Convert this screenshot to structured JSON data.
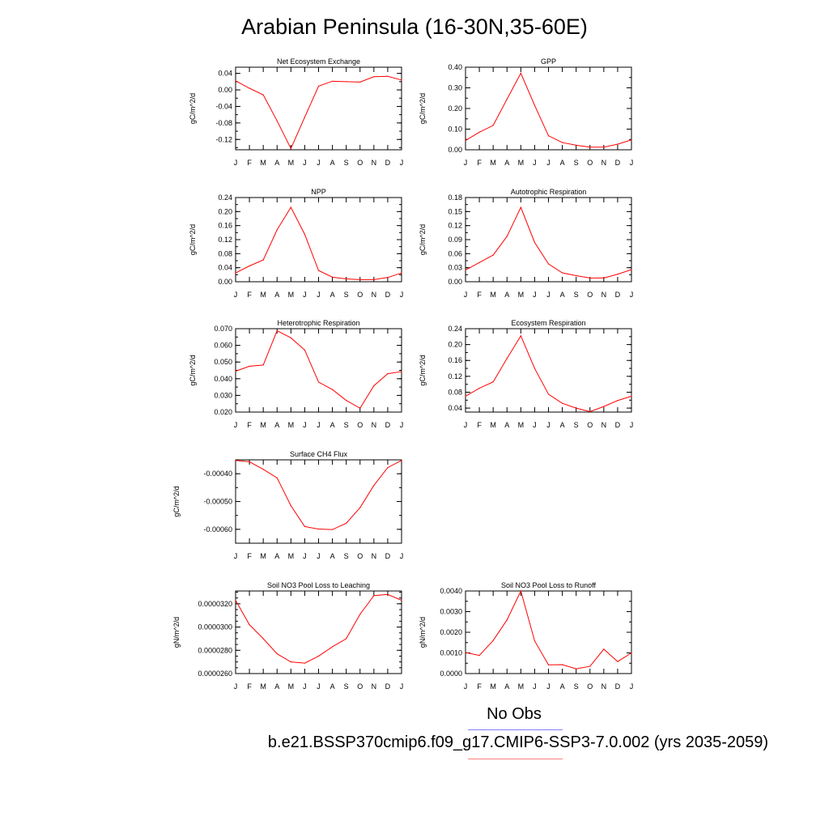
{
  "title": "Arabian Peninsula (16-30N,35-60E)",
  "legend": {
    "obs_label": "No Obs",
    "run_label": "b.e21.BSSP370cmip6.f09_g17.CMIP6-SSP3-7.0.002 (yrs 2035-2059)",
    "obs_color": "#7f7fff",
    "run_color": "#ff7f7f",
    "line_color": "#ff0000"
  },
  "chart_data": [
    {
      "type": "line",
      "title": "Net Ecosystem Exchange",
      "ylabel": "gC/m^2/d",
      "categories": [
        "J",
        "F",
        "M",
        "A",
        "M",
        "J",
        "J",
        "A",
        "S",
        "O",
        "N",
        "D",
        "J"
      ],
      "ylim": [
        -0.145,
        0.055
      ],
      "yticks": [
        0.04,
        0.0,
        -0.04,
        -0.08,
        -0.12
      ],
      "ytick_labels": [
        "0.04",
        "0.00",
        "-0.04",
        "-0.08",
        "-0.12"
      ],
      "minor_step": 0.02,
      "values": [
        0.022,
        0.004,
        -0.012,
        -0.075,
        -0.142,
        -0.066,
        0.009,
        0.021,
        0.02,
        0.019,
        0.032,
        0.033,
        0.024
      ]
    },
    {
      "type": "line",
      "title": "GPP",
      "ylabel": "gC/m^2/d",
      "categories": [
        "J",
        "F",
        "M",
        "A",
        "M",
        "J",
        "J",
        "A",
        "S",
        "O",
        "N",
        "D",
        "J"
      ],
      "ylim": [
        0.0,
        0.4
      ],
      "yticks": [
        0.0,
        0.1,
        0.2,
        0.3,
        0.4
      ],
      "ytick_labels": [
        "0.00",
        "0.10",
        "0.20",
        "0.30",
        "0.40"
      ],
      "minor_step": 0.05,
      "values": [
        0.045,
        0.085,
        0.118,
        0.245,
        0.371,
        0.215,
        0.068,
        0.035,
        0.022,
        0.013,
        0.013,
        0.027,
        0.048
      ]
    },
    {
      "type": "line",
      "title": "NPP",
      "ylabel": "gC/m^2/d",
      "categories": [
        "J",
        "F",
        "M",
        "A",
        "M",
        "J",
        "J",
        "A",
        "S",
        "O",
        "N",
        "D",
        "J"
      ],
      "ylim": [
        0.0,
        0.24
      ],
      "yticks": [
        0.0,
        0.04,
        0.08,
        0.12,
        0.16,
        0.2,
        0.24
      ],
      "ytick_labels": [
        "0.00",
        "0.04",
        "0.08",
        "0.12",
        "0.16",
        "0.20",
        "0.24"
      ],
      "minor_step": 0.02,
      "values": [
        0.025,
        0.045,
        0.062,
        0.148,
        0.212,
        0.135,
        0.032,
        0.013,
        0.008,
        0.006,
        0.006,
        0.012,
        0.025
      ]
    },
    {
      "type": "line",
      "title": "Autotrophic Respiration",
      "ylabel": "gC/m^2/d",
      "categories": [
        "J",
        "F",
        "M",
        "A",
        "M",
        "J",
        "J",
        "A",
        "S",
        "O",
        "N",
        "D",
        "J"
      ],
      "ylim": [
        0.0,
        0.18
      ],
      "yticks": [
        0.0,
        0.03,
        0.06,
        0.09,
        0.12,
        0.15,
        0.18
      ],
      "ytick_labels": [
        "0.00",
        "0.03",
        "0.06",
        "0.09",
        "0.12",
        "0.15",
        "0.18"
      ],
      "minor_step": 0.015,
      "values": [
        0.025,
        0.041,
        0.057,
        0.097,
        0.159,
        0.084,
        0.038,
        0.019,
        0.013,
        0.008,
        0.008,
        0.016,
        0.026
      ]
    },
    {
      "type": "line",
      "title": "Heterotrophic Respiration",
      "ylabel": "gC/m^2/d",
      "categories": [
        "J",
        "F",
        "M",
        "A",
        "M",
        "J",
        "J",
        "A",
        "S",
        "O",
        "N",
        "D",
        "J"
      ],
      "ylim": [
        0.02,
        0.07
      ],
      "yticks": [
        0.02,
        0.03,
        0.04,
        0.05,
        0.06,
        0.07
      ],
      "ytick_labels": [
        "0.020",
        "0.030",
        "0.040",
        "0.050",
        "0.060",
        "0.070"
      ],
      "minor_step": 0.005,
      "values": [
        0.0445,
        0.0475,
        0.0482,
        0.0688,
        0.0645,
        0.0572,
        0.038,
        0.0335,
        0.027,
        0.0223,
        0.0358,
        0.043,
        0.0443
      ]
    },
    {
      "type": "line",
      "title": "Ecosystem Respiration",
      "ylabel": "gC/m^2/d",
      "categories": [
        "J",
        "F",
        "M",
        "A",
        "M",
        "J",
        "J",
        "A",
        "S",
        "O",
        "N",
        "D",
        "J"
      ],
      "ylim": [
        0.03,
        0.24
      ],
      "yticks": [
        0.04,
        0.08,
        0.12,
        0.16,
        0.2,
        0.24
      ],
      "ytick_labels": [
        "0.04",
        "0.08",
        "0.12",
        "0.16",
        "0.20",
        "0.24"
      ],
      "minor_step": 0.02,
      "values": [
        0.07,
        0.09,
        0.106,
        0.165,
        0.222,
        0.14,
        0.075,
        0.052,
        0.04,
        0.031,
        0.044,
        0.059,
        0.07
      ]
    },
    {
      "type": "line",
      "title": "Surface CH4 Flux",
      "ylabel": "gC/m^2/d",
      "categories": [
        "J",
        "F",
        "M",
        "A",
        "M",
        "J",
        "J",
        "A",
        "S",
        "O",
        "N",
        "D",
        "J"
      ],
      "ylim": [
        -0.00065,
        -0.00035
      ],
      "yticks": [
        -0.0004,
        -0.0005,
        -0.0006
      ],
      "ytick_labels": [
        "-0.00040",
        "-0.00050",
        "-0.00060"
      ],
      "minor_step": 5e-05,
      "values": [
        -0.000352,
        -0.000357,
        -0.000384,
        -0.000415,
        -0.000515,
        -0.00059,
        -0.000599,
        -0.000601,
        -0.000578,
        -0.000522,
        -0.000442,
        -0.000378,
        -0.000352
      ]
    },
    {
      "type": "line",
      "title": "Soil NO3 Pool Loss to Leaching",
      "ylabel": "gN/m^2/d",
      "categories": [
        "J",
        "F",
        "M",
        "A",
        "M",
        "J",
        "J",
        "A",
        "S",
        "O",
        "N",
        "D",
        "J"
      ],
      "ylim": [
        2.6e-05,
        3.31e-05
      ],
      "yticks": [
        2.6e-05,
        2.8e-05,
        3e-05,
        3.2e-05
      ],
      "ytick_labels": [
        "0.0000260",
        "0.0000280",
        "0.0000300",
        "0.0000320"
      ],
      "minor_step": 5e-07,
      "values": [
        3.23e-05,
        3.02e-05,
        2.9e-05,
        2.77e-05,
        2.7e-05,
        2.69e-05,
        2.75e-05,
        2.83e-05,
        2.9e-05,
        3.11e-05,
        3.27e-05,
        3.28e-05,
        3.23e-05
      ]
    },
    {
      "type": "line",
      "title": "Soil NO3 Pool Loss to Runoff",
      "ylabel": "gN/m^2/d",
      "categories": [
        "J",
        "F",
        "M",
        "A",
        "M",
        "J",
        "J",
        "A",
        "S",
        "O",
        "N",
        "D",
        "J"
      ],
      "ylim": [
        0.0,
        0.004
      ],
      "yticks": [
        0.0,
        0.001,
        0.002,
        0.003,
        0.004
      ],
      "ytick_labels": [
        "0.0000",
        "0.0010",
        "0.0020",
        "0.0030",
        "0.0040"
      ],
      "minor_step": 0.0005,
      "values": [
        0.00102,
        0.00088,
        0.0016,
        0.0026,
        0.004,
        0.00158,
        0.00042,
        0.00043,
        0.00023,
        0.00035,
        0.00118,
        0.00058,
        0.001
      ]
    }
  ]
}
